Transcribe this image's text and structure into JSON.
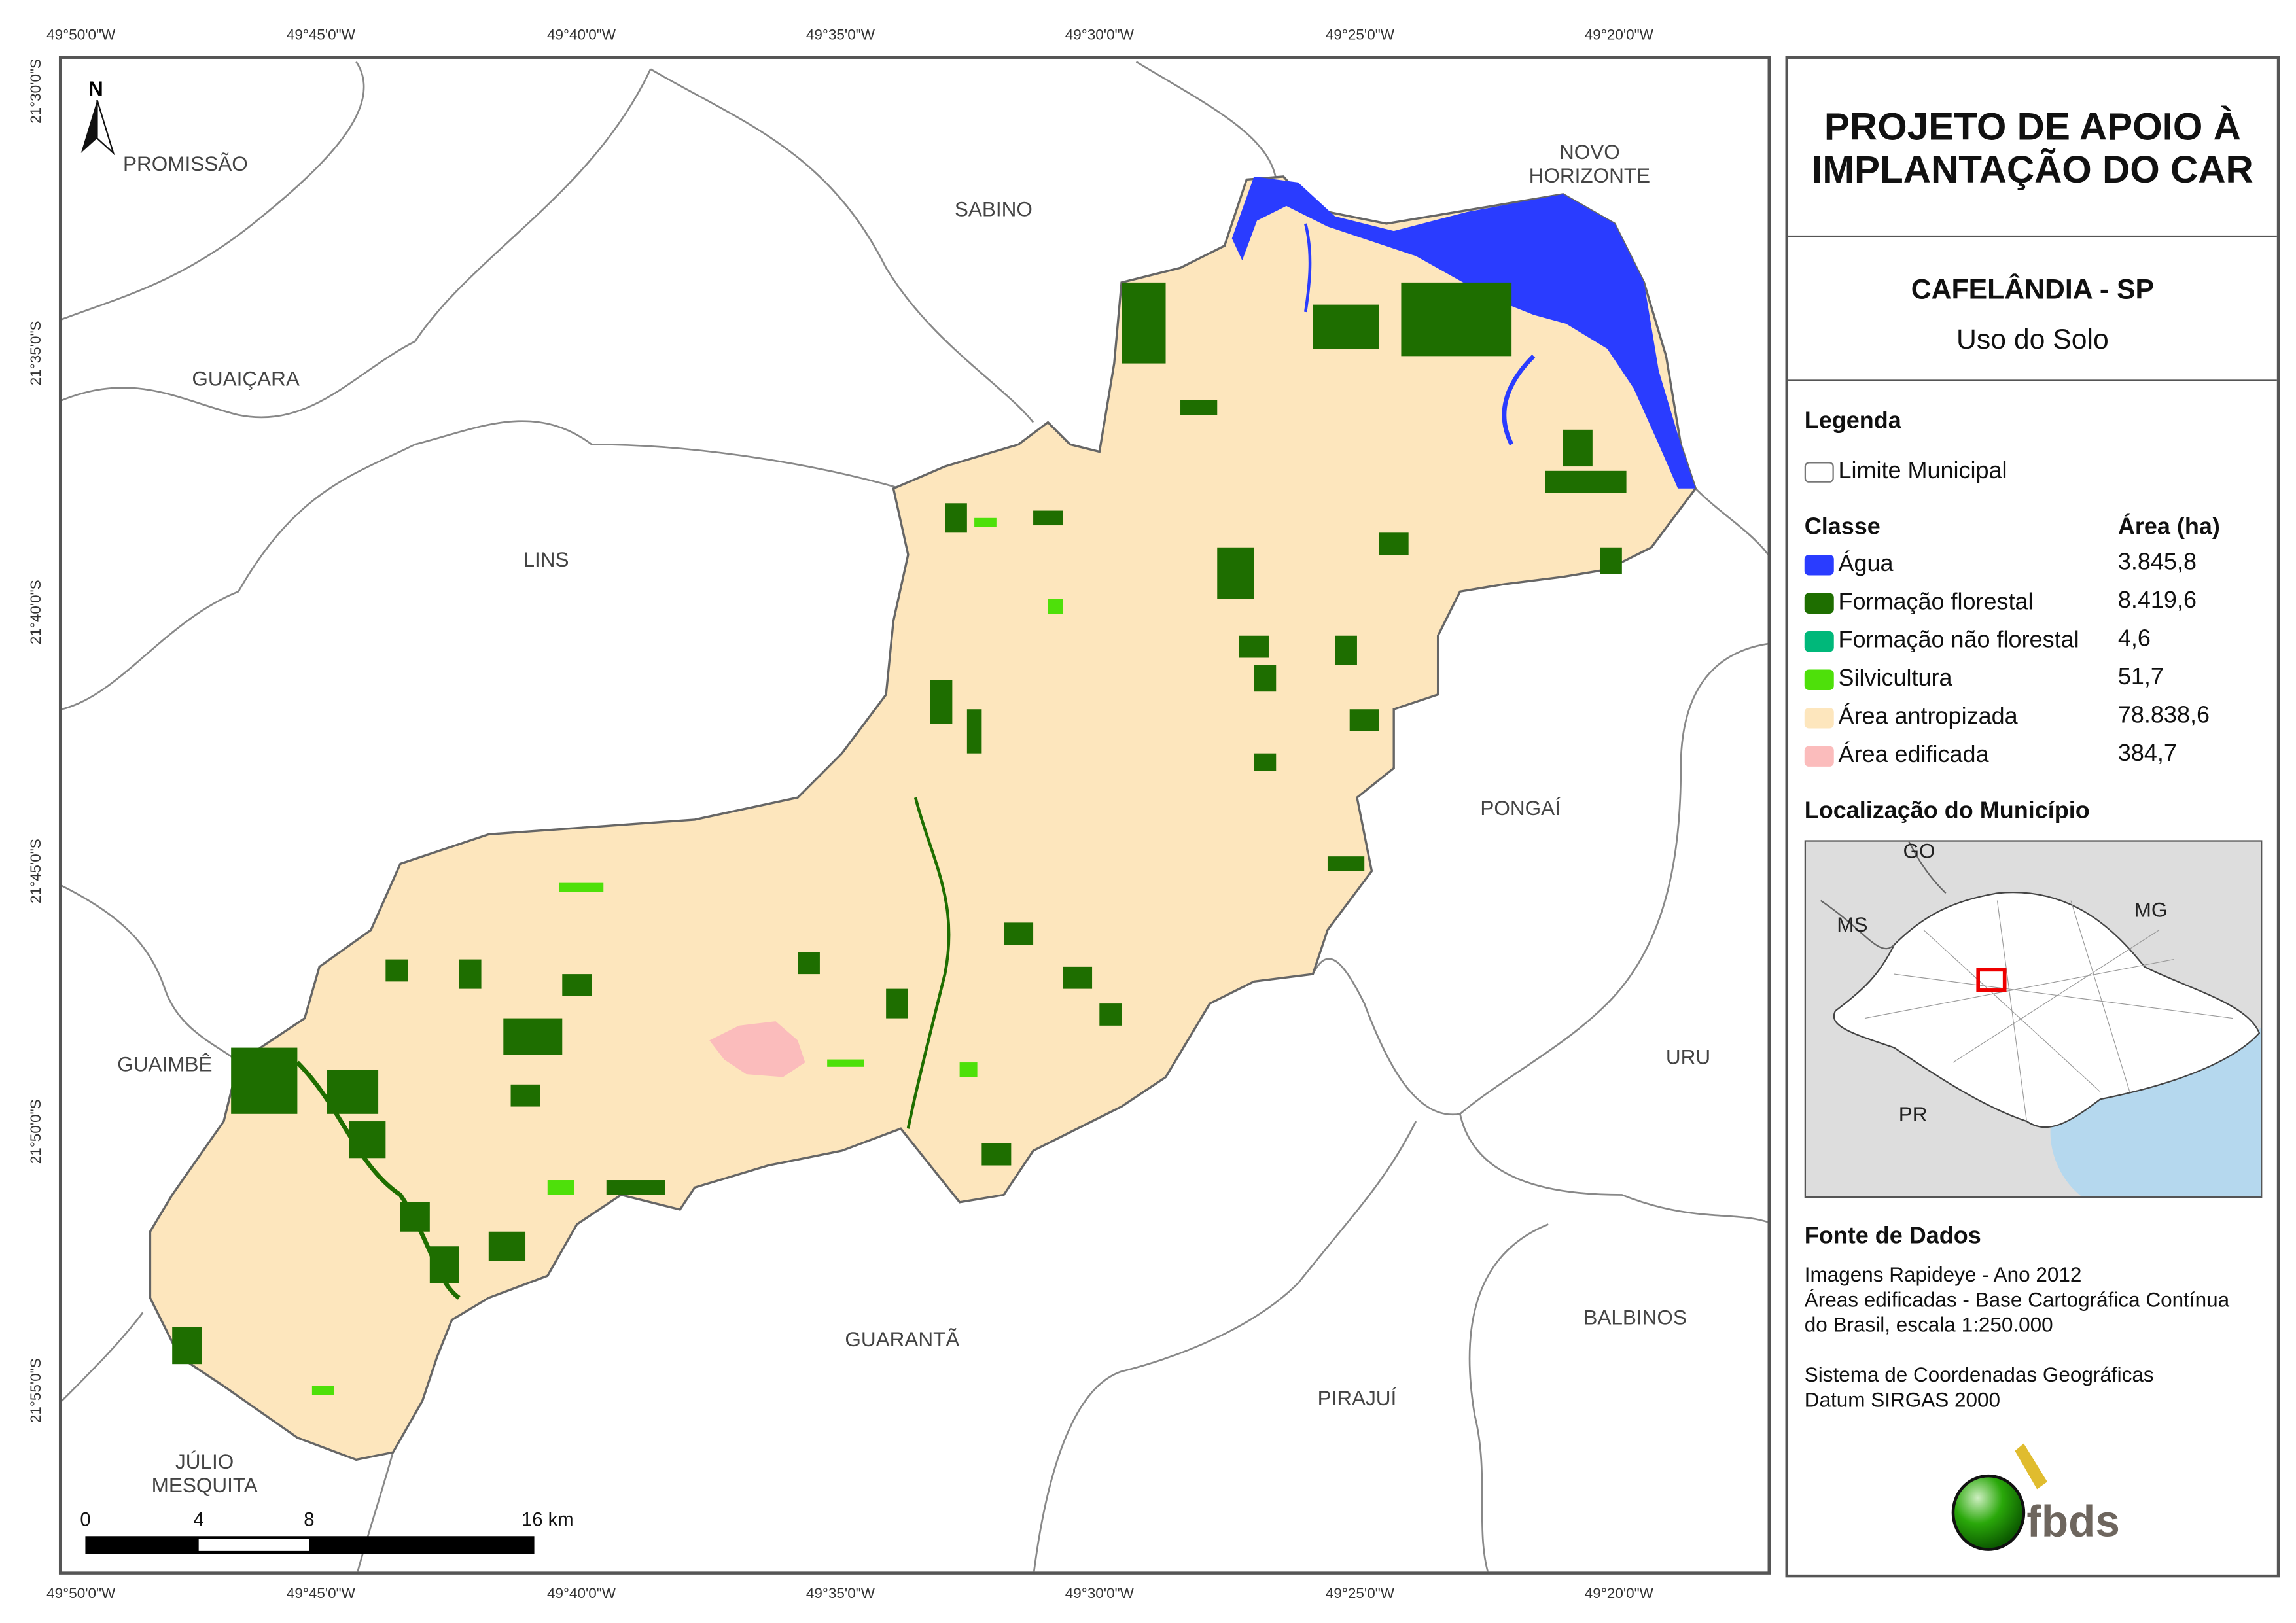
{
  "header": {
    "title": "PROJETO DE APOIO À IMPLANTAÇÃO DO CAR",
    "municipality": "CAFELÂNDIA - SP",
    "subtitle": "Uso do Solo"
  },
  "coordinates": {
    "longitudes": [
      "49°50'0\"W",
      "49°45'0\"W",
      "49°40'0\"W",
      "49°35'0\"W",
      "49°30'0\"W",
      "49°25'0\"W",
      "49°20'0\"W"
    ],
    "latitudes": [
      "21°30'0\"S",
      "21°35'0\"S",
      "21°40'0\"S",
      "21°45'0\"S",
      "21°50'0\"S",
      "21°55'0\"S"
    ]
  },
  "map": {
    "north_label": "N",
    "places": [
      "PROMISSÃO",
      "SABINO",
      "NOVO\nHORIZONTE",
      "GUAIÇARA",
      "LINS",
      "PONGAÍ",
      "GUAIMBÊ",
      "URU",
      "BALBINOS",
      "GUARANTÃ",
      "PIRAJUÍ",
      "JÚLIO\nMESQUITA"
    ],
    "scale_labels": [
      "0",
      "4",
      "8",
      "16 km"
    ]
  },
  "legend": {
    "title": "Legenda",
    "boundary_label": "Limite Municipal",
    "class_header": "Classe",
    "area_header": "Área (ha)",
    "classes": [
      {
        "label": "Água",
        "area": "3.845,8",
        "color": "#2a3cff"
      },
      {
        "label": "Formação florestal",
        "area": "8.419,6",
        "color": "#1e6e00"
      },
      {
        "label": "Formação não florestal",
        "area": "4,6",
        "color": "#00b87a"
      },
      {
        "label": "Silvicultura",
        "area": "51,7",
        "color": "#4ee00a"
      },
      {
        "label": "Área antropizada",
        "area": "78.838,6",
        "color": "#fde6bd"
      },
      {
        "label": "Área edificada",
        "area": "384,7",
        "color": "#fbbcbc"
      }
    ]
  },
  "location": {
    "title": "Localização do Município",
    "labels": [
      "GO",
      "MS",
      "MG",
      "PR"
    ]
  },
  "sources": {
    "title": "Fonte de Dados",
    "text": "Imagens Rapideye - Ano 2012\nÁreas edificadas - Base Cartográfica Contínua\ndo Brasil, escala 1:250.000",
    "crs": "Sistema de Coordenadas Geográficas\nDatum SIRGAS 2000"
  },
  "logo": {
    "text": "fbds"
  }
}
